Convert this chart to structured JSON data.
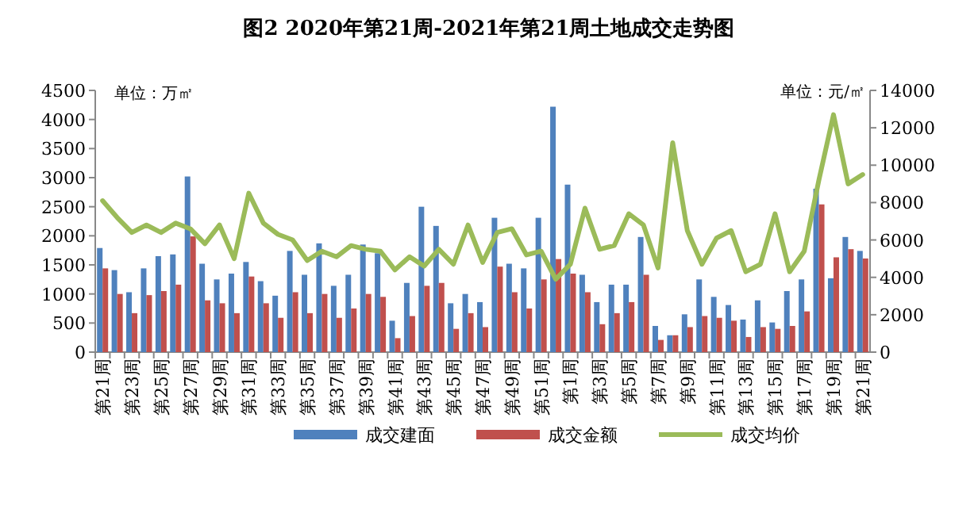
{
  "chart_data": {
    "type": "bar",
    "title": "图2 2020年第21周-2021年第21周土地成交走势图",
    "ylabel": "单位：万㎡",
    "y2label": "单位：元/㎡",
    "categories": [
      "第21周",
      null,
      "第23周",
      null,
      "第25周",
      null,
      "第27周",
      null,
      "第29周",
      null,
      "第31周",
      null,
      "第33周",
      null,
      "第35周",
      null,
      "第37周",
      null,
      "第39周",
      null,
      "第41周",
      null,
      "第43周",
      null,
      "第45周",
      null,
      "第47周",
      null,
      "第49周",
      null,
      "第51周",
      null,
      "第1周",
      null,
      "第3周",
      null,
      "第5周",
      null,
      "第7周",
      null,
      "第9周",
      null,
      "第11周",
      null,
      "第13周",
      null,
      "第15周",
      null,
      "第17周",
      null,
      "第19周",
      null,
      "第21周"
    ],
    "series": [
      {
        "name": "成交建面",
        "color": "#4f81bd",
        "values": [
          1790,
          1410,
          1030,
          1440,
          1650,
          1680,
          3020,
          1520,
          1250,
          1350,
          1550,
          1220,
          970,
          1740,
          1330,
          1870,
          1140,
          1330,
          1850,
          1700,
          540,
          1190,
          2500,
          2170,
          840,
          1000,
          860,
          2310,
          1520,
          1440,
          2310,
          4220,
          2880,
          1330,
          860,
          1160,
          1160,
          1980,
          450,
          290,
          650,
          1250,
          950,
          810,
          560,
          890,
          510,
          1050,
          1250,
          2810,
          1270,
          1980,
          1740
        ]
      },
      {
        "name": "成交金额",
        "color": "#c0504d",
        "values": [
          1440,
          1000,
          670,
          980,
          1050,
          1160,
          1990,
          890,
          840,
          670,
          1300,
          840,
          590,
          1030,
          670,
          1000,
          590,
          750,
          1000,
          950,
          240,
          620,
          1140,
          1190,
          400,
          670,
          430,
          1470,
          1030,
          750,
          1250,
          1600,
          1350,
          1030,
          480,
          670,
          860,
          1330,
          210,
          290,
          430,
          620,
          590,
          540,
          260,
          430,
          400,
          450,
          700,
          2540,
          1630,
          1770,
          1610
        ]
      },
      {
        "name": "成交均价",
        "type": "line",
        "axis": "y2",
        "color": "#9bbb59",
        "values": [
          8100,
          7200,
          6400,
          6800,
          6400,
          6900,
          6600,
          5800,
          6800,
          5000,
          8500,
          6900,
          6300,
          6000,
          4900,
          5400,
          5100,
          5700,
          5500,
          5400,
          4400,
          5100,
          4600,
          5500,
          4700,
          6800,
          4800,
          6400,
          6600,
          5200,
          5400,
          3900,
          4700,
          7700,
          5500,
          5700,
          7400,
          6800,
          4500,
          11200,
          6500,
          4700,
          6100,
          6500,
          4300,
          4700,
          7400,
          4300,
          5400,
          9200,
          12700,
          9000,
          9500
        ]
      }
    ],
    "ylim": [
      0,
      4500
    ],
    "yticks": [
      0,
      500,
      1000,
      1500,
      2000,
      2500,
      3000,
      3500,
      4000,
      4500
    ],
    "y2lim": [
      0,
      14000
    ],
    "y2ticks": [
      0,
      2000,
      4000,
      6000,
      8000,
      10000,
      12000,
      14000
    ],
    "legend": "bottom"
  }
}
